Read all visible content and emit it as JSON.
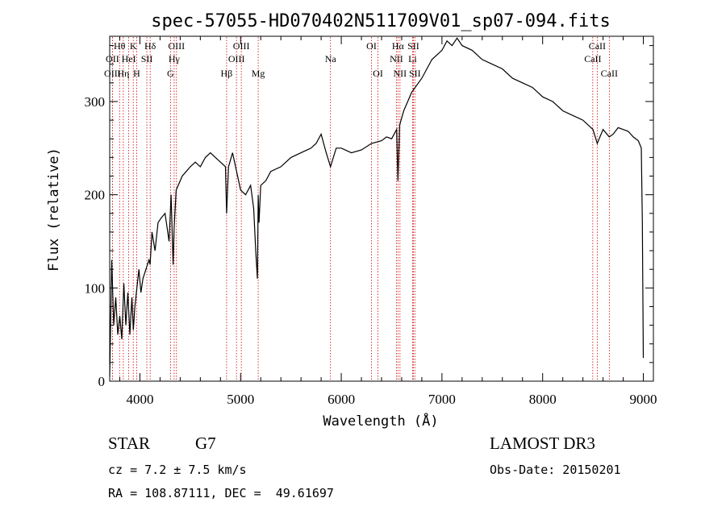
{
  "chart_data": {
    "type": "line",
    "title": "spec-57055-HD070402N511709V01_sp07-094.fits",
    "xlabel": "Wavelength (Å)",
    "ylabel": "Flux (relative)",
    "xlim": [
      3700,
      9100
    ],
    "ylim": [
      0,
      370
    ],
    "x_ticks": [
      4000,
      5000,
      6000,
      7000,
      8000,
      9000
    ],
    "y_ticks": [
      0,
      100,
      200,
      300
    ],
    "series": [
      {
        "name": "flux",
        "x": [
          3700,
          3720,
          3740,
          3760,
          3780,
          3800,
          3820,
          3840,
          3860,
          3880,
          3900,
          3920,
          3935,
          3950,
          3970,
          3990,
          4010,
          4030,
          4060,
          4090,
          4101,
          4120,
          4150,
          4180,
          4210,
          4250,
          4290,
          4310,
          4330,
          4340,
          4360,
          4380,
          4420,
          4460,
          4500,
          4550,
          4600,
          4650,
          4700,
          4750,
          4800,
          4850,
          4861,
          4880,
          4920,
          4960,
          5000,
          5050,
          5100,
          5130,
          5150,
          5167,
          5175,
          5183,
          5200,
          5250,
          5300,
          5400,
          5500,
          5600,
          5700,
          5750,
          5800,
          5850,
          5893,
          5950,
          6000,
          6100,
          6200,
          6300,
          6400,
          6450,
          6500,
          6550,
          6563,
          6580,
          6620,
          6700,
          6800,
          6900,
          7000,
          7050,
          7100,
          7150,
          7200,
          7300,
          7400,
          7500,
          7600,
          7700,
          7800,
          7900,
          8000,
          8100,
          8200,
          8300,
          8400,
          8500,
          8542,
          8600,
          8662,
          8700,
          8750,
          8800,
          8850,
          8900,
          8950,
          8980,
          8990,
          9000
        ],
        "y": [
          5,
          130,
          60,
          90,
          50,
          70,
          45,
          105,
          60,
          95,
          50,
          90,
          55,
          80,
          100,
          120,
          95,
          110,
          120,
          130,
          125,
          160,
          140,
          170,
          175,
          180,
          150,
          200,
          125,
          165,
          205,
          210,
          220,
          225,
          230,
          235,
          230,
          240,
          245,
          240,
          235,
          230,
          180,
          230,
          245,
          225,
          205,
          200,
          210,
          185,
          140,
          110,
          200,
          170,
          210,
          215,
          225,
          230,
          240,
          245,
          250,
          255,
          265,
          245,
          230,
          250,
          250,
          245,
          248,
          255,
          258,
          262,
          260,
          270,
          215,
          275,
          290,
          310,
          325,
          345,
          355,
          365,
          360,
          368,
          360,
          355,
          345,
          340,
          335,
          325,
          320,
          315,
          305,
          300,
          290,
          285,
          280,
          270,
          255,
          270,
          262,
          265,
          272,
          270,
          268,
          262,
          258,
          250,
          170,
          25
        ]
      }
    ],
    "spectral_lines": [
      {
        "name": "Hθ",
        "x": 3798,
        "row": 1
      },
      {
        "name": "OII",
        "x": 3727,
        "row": 2
      },
      {
        "name": "OIII",
        "x": 3727,
        "row": 3
      },
      {
        "name": "K",
        "x": 3934,
        "row": 1
      },
      {
        "name": "HeI",
        "x": 3889,
        "row": 2
      },
      {
        "name": "Hη",
        "x": 3835,
        "row": 3
      },
      {
        "name": "H",
        "x": 3968,
        "row": 3
      },
      {
        "name": "SII",
        "x": 4069,
        "row": 2
      },
      {
        "name": "Hδ",
        "x": 4102,
        "row": 1
      },
      {
        "name": "OIII",
        "x": 4363,
        "row": 1
      },
      {
        "name": "Hγ",
        "x": 4340,
        "row": 2
      },
      {
        "name": "G",
        "x": 4304,
        "row": 3
      },
      {
        "name": "Hβ",
        "x": 4861,
        "row": 3
      },
      {
        "name": "OIII",
        "x": 5007,
        "row": 1
      },
      {
        "name": "OIII",
        "x": 4959,
        "row": 2
      },
      {
        "name": "Mg",
        "x": 5175,
        "row": 3
      },
      {
        "name": "Na",
        "x": 5893,
        "row": 2
      },
      {
        "name": "OI",
        "x": 6300,
        "row": 1
      },
      {
        "name": "OI",
        "x": 6364,
        "row": 3
      },
      {
        "name": "Hα",
        "x": 6563,
        "row": 1
      },
      {
        "name": "NII",
        "x": 6548,
        "row": 2
      },
      {
        "name": "NII",
        "x": 6583,
        "row": 3
      },
      {
        "name": "SII",
        "x": 6716,
        "row": 1
      },
      {
        "name": "Li",
        "x": 6708,
        "row": 2
      },
      {
        "name": "SII",
        "x": 6731,
        "row": 3
      },
      {
        "name": "CaII",
        "x": 8542,
        "row": 1
      },
      {
        "name": "CaII",
        "x": 8498,
        "row": 2
      },
      {
        "name": "CaII",
        "x": 8662,
        "row": 3
      }
    ]
  },
  "info": {
    "object_class": "STAR",
    "subclass": "G7",
    "survey": "LAMOST DR3",
    "cz": "cz = 7.2 ± 7.5 km/s",
    "obs_date": "Obs-Date: 20150201",
    "coords": "RA = 108.87111, DEC =  49.61697"
  },
  "colors": {
    "line": "#000000",
    "marker": "#cc0000"
  }
}
